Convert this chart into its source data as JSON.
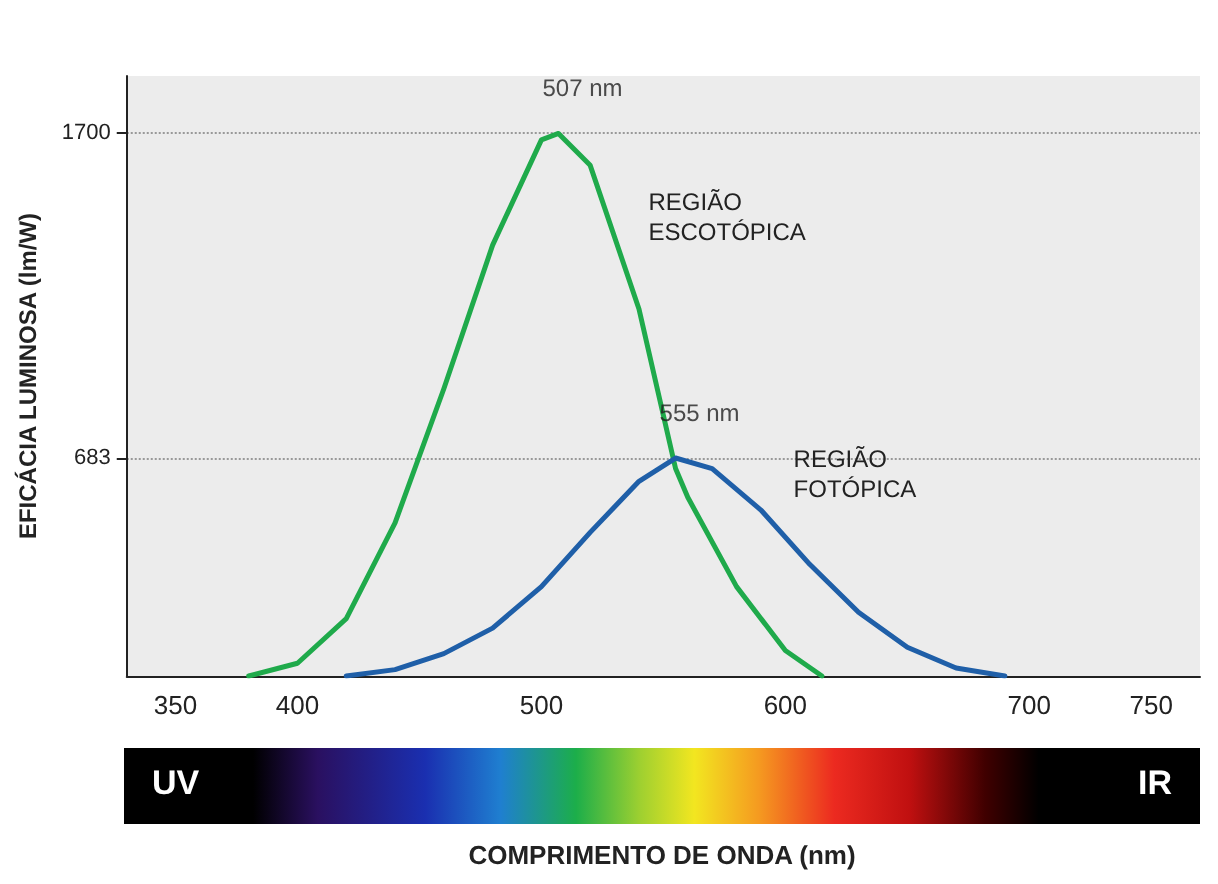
{
  "chart_data": {
    "type": "line",
    "xlabel": "COMPRIMENTO DE ONDA (nm)",
    "ylabel": "EFICÁCIA LUMINOSA (lm/W)",
    "xlim": [
      330,
      770
    ],
    "xticks": [
      350,
      400,
      500,
      600,
      700,
      750
    ],
    "ylim": [
      0,
      1880
    ],
    "yticks": [
      683,
      1700
    ],
    "grid": "y",
    "marker": "none",
    "line_style": "solid",
    "series": [
      {
        "name": "REGIÃO\nESCOTÓPICA",
        "color": "#1faa4b",
        "x": [
          380,
          400,
          420,
          440,
          460,
          480,
          500,
          507,
          520,
          540,
          555,
          560,
          580,
          600,
          615
        ],
        "values": [
          0,
          40,
          180,
          480,
          900,
          1350,
          1680,
          1700,
          1600,
          1150,
          650,
          560,
          280,
          80,
          0
        ]
      },
      {
        "name": "REGIÃO\nFOTÓPICA",
        "color": "#1f5fa8",
        "x": [
          420,
          440,
          460,
          480,
          500,
          520,
          540,
          555,
          570,
          590,
          610,
          630,
          650,
          670,
          690
        ],
        "values": [
          0,
          20,
          70,
          150,
          280,
          450,
          610,
          683,
          650,
          520,
          350,
          200,
          90,
          25,
          0
        ]
      }
    ],
    "annotations": [
      {
        "text": "507 nm",
        "x": 507,
        "y": 1700
      },
      {
        "text": "555 nm",
        "x": 555,
        "y": 683
      },
      "UV",
      "IR"
    ]
  }
}
